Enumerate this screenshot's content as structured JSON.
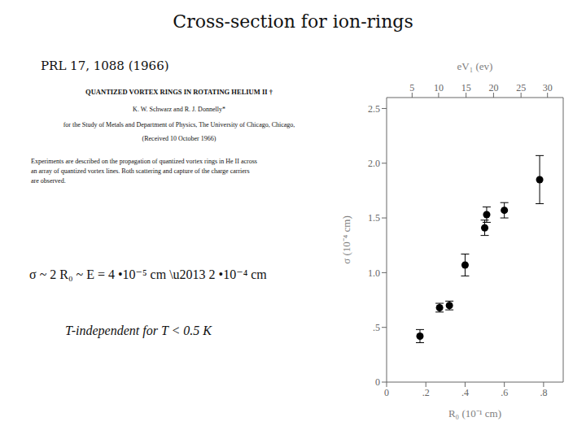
{
  "chart_data": {
    "type": "scatter",
    "title": "Cross-section for ion-rings",
    "x": [
      0.17,
      0.27,
      0.32,
      0.4,
      0.5,
      0.51,
      0.6,
      0.78
    ],
    "values": [
      0.42,
      0.68,
      0.7,
      1.07,
      1.41,
      1.53,
      1.57,
      1.85
    ],
    "yerr_low": [
      0.06,
      0.04,
      0.04,
      0.1,
      0.07,
      0.07,
      0.07,
      0.22
    ],
    "yerr_high": [
      0.06,
      0.04,
      0.04,
      0.1,
      0.07,
      0.07,
      0.07,
      0.22
    ],
    "color": "#000000",
    "marker": "circle",
    "xlabel": "R₀  (10⁻¹ cm)",
    "ylabel": "σ  (10⁻⁴ cm)",
    "x2label": "eV₁  (ev)",
    "xlim": [
      0,
      0.9
    ],
    "ylim": [
      0,
      2.6
    ],
    "xticks": [
      0,
      {
        "value": 0.2,
        "label": ".2"
      },
      {
        "value": 0.4,
        "label": ".4"
      },
      {
        "value": 0.6,
        "label": ".6"
      },
      {
        "value": 0.8,
        "label": ".8"
      }
    ],
    "yticks": [
      0,
      {
        "value": 0.5,
        "label": ".5"
      },
      {
        "value": 1.0,
        "label": "1.0"
      },
      1.5,
      {
        "value": 2.0,
        "label": "2.0"
      },
      2.5
    ],
    "x2ticks": [
      {
        "value": 0.13,
        "label": "5"
      },
      {
        "value": 0.265,
        "label": "10"
      },
      {
        "value": 0.405,
        "label": "15"
      },
      {
        "value": 0.545,
        "label": "20"
      },
      {
        "value": 0.685,
        "label": "25"
      },
      {
        "value": 0.82,
        "label": "30"
      }
    ],
    "annotations": [
      "PRL 17, 1088 (1966)",
      "QUANTIZED VORTEX RINGS IN ROTATING HELIUM II †",
      "K. W. Schwarz and R. J. Donnelly*",
      "for the Study of Metals and Department of Physics, The University of Chicago, Chicago,",
      "(Received 10 October 1966)",
      "Experiments are described on the propagation of quantized vortex rings in He II across\nan array of quantized vortex lines.  Both scattering and capture of the charge carriers\nare observed.",
      "σ ~ 2 R₀ ~ E = 4 •10⁻⁵ cm \\u2013 2 •10⁻⁴ cm",
      "T-independent for T < 0.5 K"
    ]
  }
}
